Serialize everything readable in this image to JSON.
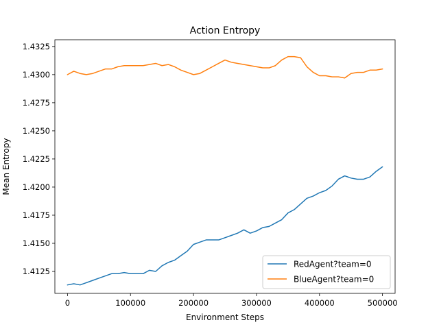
{
  "chart_data": {
    "type": "line",
    "title": "Action Entropy",
    "xlabel": "Environment Steps",
    "ylabel": "Mean Entropy",
    "xlim": [
      -20000,
      520000
    ],
    "ylim": [
      1.41055,
      1.4331
    ],
    "xticks": [
      0,
      100000,
      200000,
      300000,
      400000,
      500000
    ],
    "xtick_labels": [
      "0",
      "100000",
      "200000",
      "300000",
      "400000",
      "500000"
    ],
    "yticks": [
      1.4125,
      1.415,
      1.4175,
      1.42,
      1.4225,
      1.425,
      1.4275,
      1.43,
      1.4325
    ],
    "ytick_labels": [
      "1.4125",
      "1.4150",
      "1.4175",
      "1.4200",
      "1.4225",
      "1.4250",
      "1.4275",
      "1.4300",
      "1.4325"
    ],
    "grid": false,
    "legend_position": "bottom-right",
    "series": [
      {
        "name": "RedAgent?team=0",
        "color": "#1f77b4",
        "x": [
          0,
          10000,
          20000,
          30000,
          40000,
          50000,
          60000,
          70000,
          80000,
          90000,
          100000,
          110000,
          120000,
          130000,
          140000,
          150000,
          160000,
          170000,
          180000,
          190000,
          200000,
          210000,
          220000,
          230000,
          240000,
          250000,
          260000,
          270000,
          280000,
          290000,
          300000,
          310000,
          320000,
          330000,
          340000,
          350000,
          360000,
          370000,
          380000,
          390000,
          400000,
          410000,
          420000,
          430000,
          440000,
          450000,
          460000,
          470000,
          480000,
          490000,
          500000
        ],
        "y": [
          1.4113,
          1.4114,
          1.4113,
          1.4115,
          1.4117,
          1.4119,
          1.4121,
          1.4123,
          1.4123,
          1.4124,
          1.4123,
          1.4123,
          1.4123,
          1.4126,
          1.4125,
          1.413,
          1.4133,
          1.4135,
          1.4139,
          1.4143,
          1.4149,
          1.4151,
          1.4153,
          1.4153,
          1.4153,
          1.4155,
          1.4157,
          1.4159,
          1.4162,
          1.4159,
          1.4161,
          1.4164,
          1.4165,
          1.4168,
          1.4171,
          1.4177,
          1.418,
          1.4185,
          1.419,
          1.4192,
          1.4195,
          1.4197,
          1.4201,
          1.4207,
          1.421,
          1.4208,
          1.4207,
          1.4207,
          1.4209,
          1.4214,
          1.4218
        ]
      },
      {
        "name": "BlueAgent?team=0",
        "color": "#ff7f0e",
        "x": [
          0,
          10000,
          20000,
          30000,
          40000,
          50000,
          60000,
          70000,
          80000,
          90000,
          100000,
          110000,
          120000,
          130000,
          140000,
          150000,
          160000,
          170000,
          180000,
          190000,
          200000,
          210000,
          220000,
          230000,
          240000,
          250000,
          260000,
          270000,
          280000,
          290000,
          300000,
          310000,
          320000,
          330000,
          340000,
          350000,
          360000,
          370000,
          380000,
          390000,
          400000,
          410000,
          420000,
          430000,
          440000,
          450000,
          460000,
          470000,
          480000,
          490000,
          500000
        ],
        "y": [
          1.43,
          1.4303,
          1.4301,
          1.43,
          1.4301,
          1.4303,
          1.4305,
          1.4305,
          1.4307,
          1.4308,
          1.4308,
          1.4308,
          1.4308,
          1.4309,
          1.431,
          1.4308,
          1.4309,
          1.4307,
          1.4304,
          1.4302,
          1.43,
          1.4301,
          1.4304,
          1.4307,
          1.431,
          1.4313,
          1.4311,
          1.431,
          1.4309,
          1.4308,
          1.4307,
          1.4306,
          1.4306,
          1.4308,
          1.4313,
          1.4316,
          1.4316,
          1.4315,
          1.4307,
          1.4302,
          1.4299,
          1.4299,
          1.4298,
          1.4298,
          1.4297,
          1.4301,
          1.4302,
          1.4302,
          1.4304,
          1.4304,
          1.4305
        ]
      }
    ]
  }
}
